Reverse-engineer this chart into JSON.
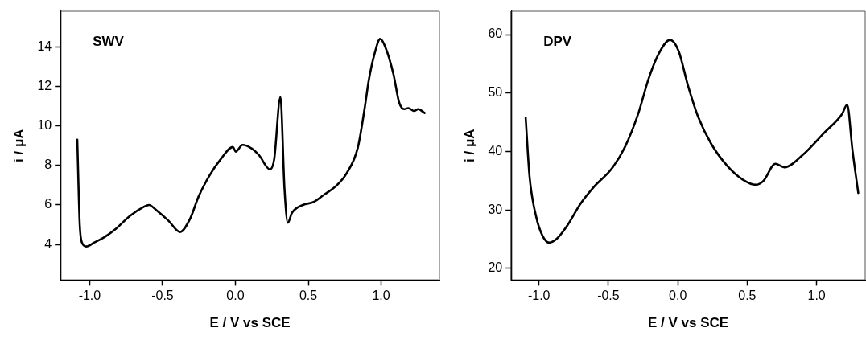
{
  "chart_data": [
    {
      "type": "line",
      "xlabel": "E / V vs SCE",
      "ylabel": "i / μA",
      "annotations": [
        "SWV"
      ],
      "xlim": [
        -1.2,
        1.4
      ],
      "xticks": [
        {
          "value": -1,
          "label": "-1.0"
        },
        {
          "value": -0.5,
          "label": "-0.5"
        },
        {
          "value": 0,
          "label": "0.0"
        },
        {
          "value": 0.5,
          "label": "0.5"
        },
        {
          "value": 1,
          "label": "1.0"
        }
      ],
      "ylim": [
        2.2,
        15.8
      ],
      "yticks": [
        4,
        6,
        8,
        10,
        12,
        14
      ],
      "grid": false,
      "legend": false,
      "marker": "none",
      "line_style": "solid",
      "series": [
        {
          "color": "#000000",
          "x": [
            -1.085,
            -1.068,
            -1.053,
            -1.024,
            -0.968,
            -0.893,
            -0.819,
            -0.723,
            -0.629,
            -0.593,
            -0.537,
            -0.459,
            -0.38,
            -0.311,
            -0.254,
            -0.177,
            -0.102,
            -0.017,
            0.002,
            0.049,
            0.113,
            0.162,
            0.237,
            0.266,
            0.309,
            0.337,
            0.36,
            0.388,
            0.463,
            0.537,
            0.614,
            0.689,
            0.763,
            0.84,
            0.887,
            0.915,
            0.953,
            0.994,
            1.028,
            1.085,
            1.123,
            1.158,
            1.186,
            1.226,
            1.254,
            1.299
          ],
          "values": [
            9.3,
            5.0,
            4.1,
            3.9,
            4.1,
            4.4,
            4.8,
            5.45,
            5.9,
            6.0,
            5.7,
            5.2,
            4.63,
            5.3,
            6.4,
            7.5,
            8.3,
            8.93,
            8.7,
            9.04,
            8.85,
            8.52,
            7.8,
            8.3,
            11.46,
            6.8,
            5.1,
            5.6,
            6.0,
            6.15,
            6.55,
            6.95,
            7.6,
            8.9,
            10.9,
            12.3,
            13.6,
            14.4,
            14.0,
            12.6,
            11.2,
            10.85,
            10.9,
            10.75,
            10.85,
            10.65
          ]
        }
      ]
    },
    {
      "type": "line",
      "xlabel": "E / V vs SCE",
      "ylabel": "i / μA",
      "annotations": [
        "DPV"
      ],
      "xlim": [
        -1.2,
        1.35
      ],
      "xticks": [
        {
          "value": -1,
          "label": "-1.0"
        },
        {
          "value": -0.5,
          "label": "-0.5"
        },
        {
          "value": 0,
          "label": "0.0"
        },
        {
          "value": 0.5,
          "label": "0.5"
        },
        {
          "value": 1,
          "label": "1.0"
        }
      ],
      "ylim": [
        18,
        64
      ],
      "yticks": [
        20,
        30,
        40,
        50,
        60
      ],
      "grid": false,
      "legend": false,
      "marker": "none",
      "line_style": "solid",
      "series": [
        {
          "color": "#000000",
          "x": [
            -1.096,
            -1.068,
            -1.02,
            -0.973,
            -0.927,
            -0.87,
            -0.794,
            -0.7,
            -0.606,
            -0.475,
            -0.38,
            -0.286,
            -0.211,
            -0.136,
            -0.056,
            0.006,
            0.072,
            0.147,
            0.241,
            0.354,
            0.467,
            0.562,
            0.618,
            0.703,
            0.768,
            0.9,
            1.051,
            1.183,
            1.22,
            1.258,
            1.3
          ],
          "values": [
            45.8,
            35.7,
            28.8,
            25.5,
            24.4,
            25.1,
            27.4,
            31.1,
            33.9,
            37.1,
            40.8,
            46.4,
            52.4,
            56.8,
            59.1,
            57.2,
            51.4,
            45.9,
            41.3,
            37.6,
            35.2,
            34.3,
            35.0,
            37.9,
            37.3,
            39.4,
            43.1,
            46.4,
            48.0,
            40.3,
            32.9
          ]
        }
      ]
    }
  ]
}
